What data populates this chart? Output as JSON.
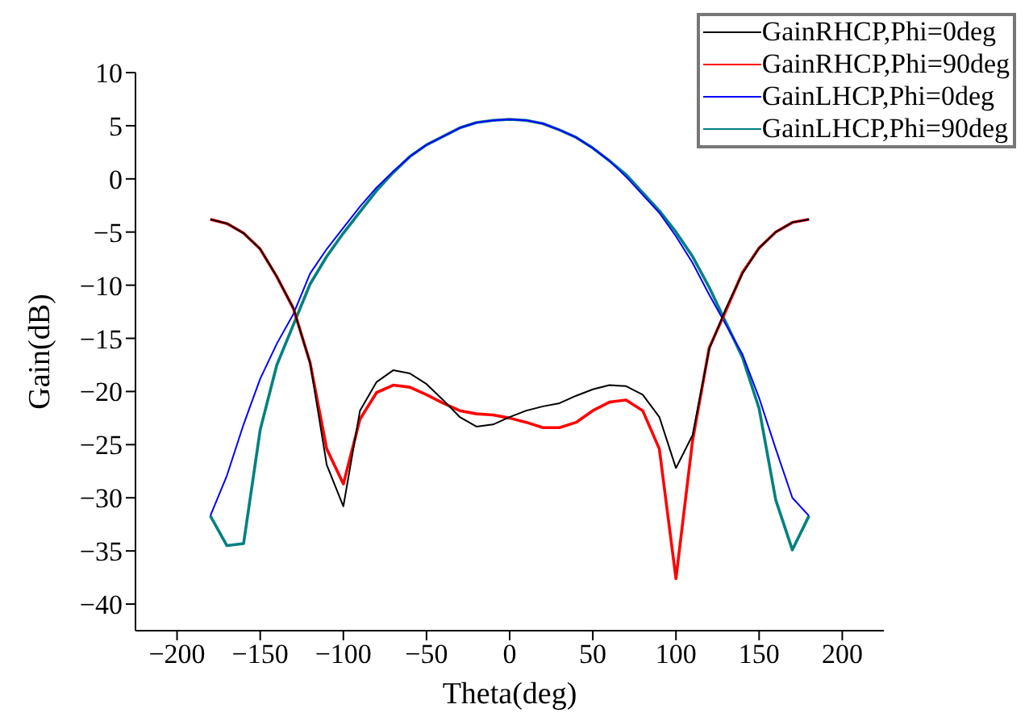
{
  "chart_data": {
    "type": "line",
    "xlabel": "Theta(deg)",
    "ylabel": "Gain(dB)",
    "x": [
      -180,
      -170,
      -160,
      -150,
      -140,
      -130,
      -120,
      -110,
      -100,
      -90,
      -80,
      -70,
      -60,
      -50,
      -40,
      -30,
      -20,
      -10,
      0,
      10,
      20,
      30,
      40,
      50,
      60,
      70,
      80,
      90,
      100,
      110,
      120,
      130,
      140,
      150,
      160,
      170,
      180
    ],
    "series": [
      {
        "name": "GainRHCP,Phi=0deg",
        "color": "#000000",
        "values": [
          -3.8,
          -4.2,
          -5.1,
          -6.6,
          -9.2,
          -12.2,
          -17.3,
          -26.9,
          -30.8,
          -21.8,
          -19.1,
          -18.0,
          -18.3,
          -19.3,
          -20.8,
          -22.4,
          -23.3,
          -23.1,
          -22.4,
          -21.8,
          -21.4,
          -21.1,
          -20.4,
          -19.8,
          -19.4,
          -19.5,
          -20.3,
          -22.4,
          -27.2,
          -24.1,
          -16.0,
          -12.2,
          -8.9,
          -6.5,
          -5.0,
          -4.1,
          -3.8
        ]
      },
      {
        "name": "GainRHCP,Phi=90deg",
        "color": "#ff0000",
        "values": [
          -3.8,
          -4.2,
          -5.1,
          -6.6,
          -9.2,
          -12.2,
          -17.3,
          -25.4,
          -28.7,
          -22.6,
          -20.1,
          -19.4,
          -19.6,
          -20.3,
          -21.1,
          -21.8,
          -22.1,
          -22.2,
          -22.5,
          -22.9,
          -23.4,
          -23.4,
          -22.9,
          -21.8,
          -21.0,
          -20.8,
          -21.8,
          -25.4,
          -37.6,
          -24.6,
          -15.9,
          -12.4,
          -8.8,
          -6.5,
          -5.0,
          -4.1,
          -3.8
        ]
      },
      {
        "name": "GainLHCP,Phi=0deg",
        "color": "#0000ff",
        "values": [
          -31.7,
          -27.9,
          -23.1,
          -18.8,
          -15.5,
          -12.7,
          -8.9,
          -6.6,
          -4.6,
          -2.6,
          -0.8,
          0.7,
          2.1,
          3.2,
          4.0,
          4.8,
          5.3,
          5.5,
          5.6,
          5.5,
          5.2,
          4.6,
          3.9,
          2.9,
          1.7,
          0.2,
          -1.5,
          -3.2,
          -5.4,
          -7.9,
          -10.9,
          -13.7,
          -16.5,
          -20.6,
          -25.4,
          -30.0,
          -31.7
        ]
      },
      {
        "name": "GainLHCP,Phi=90deg",
        "color": "#008080",
        "values": [
          -31.7,
          -34.5,
          -34.3,
          -23.6,
          -17.5,
          -13.7,
          -9.9,
          -7.3,
          -5.1,
          -3.1,
          -1.1,
          0.6,
          2.1,
          3.2,
          4.0,
          4.8,
          5.3,
          5.5,
          5.6,
          5.5,
          5.2,
          4.6,
          3.9,
          2.9,
          1.7,
          0.4,
          -1.3,
          -3.0,
          -5.0,
          -7.3,
          -10.2,
          -13.5,
          -16.8,
          -21.6,
          -30.2,
          -34.9,
          -31.7
        ]
      }
    ],
    "xlim": [
      -225,
      225
    ],
    "xticks": [
      -200,
      -150,
      -100,
      -50,
      0,
      50,
      100,
      150,
      200
    ],
    "ylim": [
      -42.5,
      10
    ],
    "yticks": [
      -40,
      -35,
      -30,
      -25,
      -20,
      -15,
      -10,
      -5,
      0,
      5,
      10
    ],
    "grid": false,
    "legend": "top right",
    "marker": "none",
    "line_style": "solid"
  }
}
